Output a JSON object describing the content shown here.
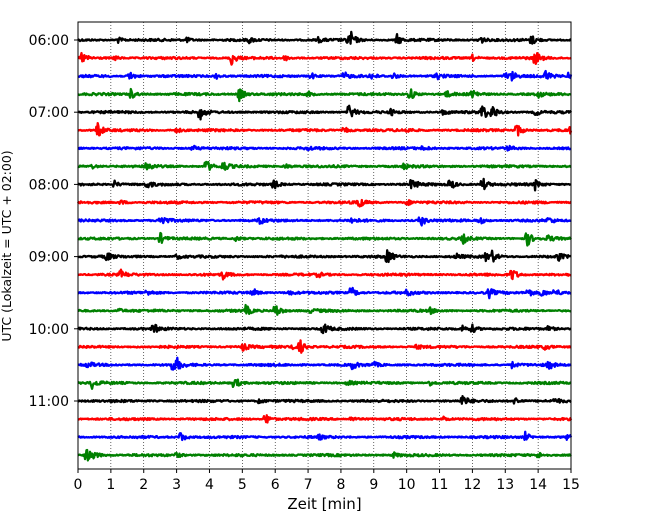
{
  "chart_data": {
    "type": "line",
    "xlabel": "Zeit  [min]",
    "ylabel": "UTC (Lokalzeit = UTC + 02:00)",
    "xlim": [
      0,
      15
    ],
    "x_ticks": [
      0,
      1,
      2,
      3,
      4,
      5,
      6,
      7,
      8,
      9,
      10,
      11,
      12,
      13,
      14,
      15
    ],
    "y_ticks": [
      "06:00",
      "07:00",
      "08:00",
      "09:00",
      "10:00",
      "11:00"
    ],
    "grid": "vertical dotted",
    "trace_interval_min": 15,
    "colors": [
      "#000000",
      "#ff0000",
      "#0000ff",
      "#008000"
    ],
    "traces": [
      {
        "start": "06:00",
        "color": "#000000",
        "events": [
          [
            1.2,
            0.5
          ],
          [
            3.3,
            0.4
          ],
          [
            5.2,
            0.4
          ],
          [
            7.3,
            0.4
          ],
          [
            8.2,
            1.0
          ],
          [
            8.3,
            0.9
          ],
          [
            9.7,
            0.9
          ],
          [
            12.2,
            0.9
          ],
          [
            13.8,
            0.8
          ]
        ]
      },
      {
        "start": "06:15",
        "color": "#ff0000",
        "events": [
          [
            0.1,
            0.9
          ],
          [
            1.1,
            0.4
          ],
          [
            4.65,
            1.3
          ],
          [
            6.3,
            0.4
          ],
          [
            12.0,
            0.5
          ],
          [
            13.9,
            1.3
          ]
        ]
      },
      {
        "start": "06:30",
        "color": "#0000ff",
        "events": [
          [
            1.55,
            1.0
          ],
          [
            4.2,
            0.4
          ],
          [
            7.1,
            0.5
          ],
          [
            8.1,
            0.6
          ],
          [
            8.9,
            0.5
          ],
          [
            9.6,
            0.5
          ],
          [
            10.9,
            0.5
          ],
          [
            13.0,
            0.6
          ],
          [
            13.2,
            0.7
          ],
          [
            14.2,
            1.1
          ],
          [
            14.9,
            0.6
          ]
        ]
      },
      {
        "start": "06:45",
        "color": "#008000",
        "events": [
          [
            1.6,
            0.9
          ],
          [
            4.9,
            1.2
          ],
          [
            7.0,
            0.4
          ],
          [
            10.1,
            1.1
          ],
          [
            11.2,
            0.5
          ],
          [
            12.0,
            0.9
          ],
          [
            14.0,
            0.5
          ]
        ]
      },
      {
        "start": "07:00",
        "color": "#000000",
        "events": [
          [
            3.7,
            1.3
          ],
          [
            8.25,
            1.5
          ],
          [
            9.5,
            0.5
          ],
          [
            11.1,
            0.5
          ],
          [
            12.3,
            1.5
          ],
          [
            12.6,
            1.1
          ],
          [
            13.9,
            0.6
          ]
        ]
      },
      {
        "start": "07:15",
        "color": "#ff0000",
        "events": [
          [
            0.6,
            1.4
          ],
          [
            3.0,
            0.4
          ],
          [
            8.1,
            0.5
          ],
          [
            10.0,
            0.4
          ],
          [
            13.35,
            1.2
          ],
          [
            15.0,
            1.0
          ]
        ]
      },
      {
        "start": "07:30",
        "color": "#0000ff",
        "events": [
          [
            3.5,
            0.4
          ],
          [
            7.0,
            0.3
          ],
          [
            10.5,
            0.4
          ],
          [
            13.1,
            0.4
          ]
        ]
      },
      {
        "start": "07:45",
        "color": "#008000",
        "events": [
          [
            0.4,
            0.4
          ],
          [
            2.1,
            0.9
          ],
          [
            3.9,
            1.1
          ],
          [
            4.4,
            1.0
          ],
          [
            6.3,
            0.4
          ],
          [
            9.9,
            0.4
          ]
        ]
      },
      {
        "start": "08:00",
        "color": "#000000",
        "events": [
          [
            1.1,
            0.6
          ],
          [
            2.1,
            0.6
          ],
          [
            5.95,
            0.8
          ],
          [
            10.15,
            1.1
          ],
          [
            11.3,
            1.1
          ],
          [
            12.3,
            1.2
          ],
          [
            13.9,
            0.9
          ]
        ]
      },
      {
        "start": "08:15",
        "color": "#ff0000",
        "events": [
          [
            1.3,
            0.4
          ],
          [
            8.5,
            1.3
          ],
          [
            10.0,
            0.5
          ]
        ]
      },
      {
        "start": "08:30",
        "color": "#0000ff",
        "events": [
          [
            2.5,
            1.3
          ],
          [
            5.5,
            0.7
          ],
          [
            8.3,
            0.5
          ],
          [
            10.4,
            1.2
          ],
          [
            12.2,
            0.7
          ],
          [
            14.3,
            0.6
          ]
        ]
      },
      {
        "start": "08:45",
        "color": "#008000",
        "events": [
          [
            2.5,
            0.9
          ],
          [
            4.8,
            0.4
          ],
          [
            11.7,
            0.8
          ],
          [
            13.65,
            1.4
          ],
          [
            14.3,
            0.5
          ]
        ]
      },
      {
        "start": "09:00",
        "color": "#000000",
        "events": [
          [
            0.85,
            0.8
          ],
          [
            3.0,
            0.4
          ],
          [
            9.4,
            1.4
          ],
          [
            11.5,
            0.5
          ],
          [
            12.4,
            0.8
          ],
          [
            12.6,
            0.8
          ],
          [
            14.6,
            0.7
          ]
        ]
      },
      {
        "start": "09:15",
        "color": "#ff0000",
        "events": [
          [
            1.3,
            0.7
          ],
          [
            4.4,
            0.7
          ],
          [
            7.3,
            0.4
          ],
          [
            13.2,
            1.2
          ]
        ]
      },
      {
        "start": "09:30",
        "color": "#0000ff",
        "events": [
          [
            2.1,
            0.4
          ],
          [
            5.3,
            0.8
          ],
          [
            6.4,
            0.4
          ],
          [
            8.3,
            1.2
          ],
          [
            10.0,
            0.6
          ],
          [
            12.5,
            0.8
          ],
          [
            13.7,
            0.8
          ],
          [
            14.1,
            0.7
          ],
          [
            14.5,
            0.7
          ]
        ]
      },
      {
        "start": "09:45",
        "color": "#008000",
        "events": [
          [
            1.2,
            0.4
          ],
          [
            5.1,
            0.9
          ],
          [
            6.0,
            1.4
          ],
          [
            7.1,
            0.4
          ],
          [
            10.7,
            0.5
          ]
        ]
      },
      {
        "start": "10:00",
        "color": "#000000",
        "events": [
          [
            2.3,
            0.8
          ],
          [
            7.45,
            1.1
          ],
          [
            11.7,
            0.6
          ],
          [
            12.0,
            0.6
          ],
          [
            14.3,
            0.6
          ]
        ]
      },
      {
        "start": "10:15",
        "color": "#ff0000",
        "events": [
          [
            5.0,
            0.7
          ],
          [
            6.4,
            0.9
          ],
          [
            6.75,
            1.2
          ],
          [
            10.3,
            0.4
          ],
          [
            14.2,
            0.4
          ]
        ]
      },
      {
        "start": "10:30",
        "color": "#0000ff",
        "events": [
          [
            0.3,
            0.5
          ],
          [
            2.85,
            1.0
          ],
          [
            3.0,
            0.9
          ],
          [
            8.3,
            0.9
          ],
          [
            9.0,
            0.4
          ],
          [
            13.2,
            0.5
          ],
          [
            14.3,
            0.8
          ]
        ]
      },
      {
        "start": "10:45",
        "color": "#008000",
        "events": [
          [
            0.4,
            1.0
          ],
          [
            4.75,
            1.2
          ],
          [
            8.2,
            0.4
          ],
          [
            10.7,
            0.4
          ]
        ]
      },
      {
        "start": "11:00",
        "color": "#000000",
        "events": [
          [
            5.5,
            0.5
          ],
          [
            11.7,
            1.0
          ],
          [
            13.3,
            0.7
          ],
          [
            14.5,
            0.4
          ]
        ]
      },
      {
        "start": "11:15",
        "color": "#ff0000",
        "events": [
          [
            5.7,
            1.0
          ],
          [
            8.3,
            0.4
          ],
          [
            11.1,
            0.4
          ]
        ]
      },
      {
        "start": "11:30",
        "color": "#0000ff",
        "events": [
          [
            3.1,
            1.0
          ],
          [
            7.3,
            0.4
          ],
          [
            13.6,
            0.8
          ],
          [
            14.9,
            0.6
          ]
        ]
      },
      {
        "start": "11:45",
        "color": "#008000",
        "events": [
          [
            0.25,
            1.2
          ],
          [
            0.5,
            0.6
          ],
          [
            3.0,
            0.4
          ],
          [
            9.6,
            0.4
          ],
          [
            14.0,
            0.5
          ]
        ]
      }
    ]
  }
}
